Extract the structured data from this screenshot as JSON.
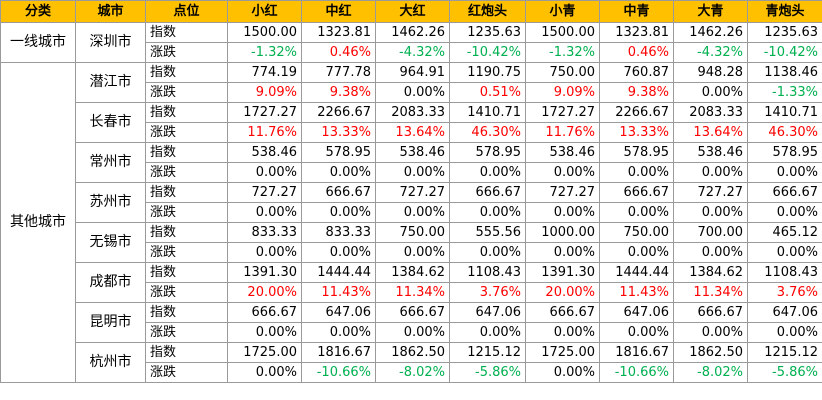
{
  "headers": [
    "分类",
    "城市",
    "点位",
    "小红",
    "中红",
    "大红",
    "红炮头",
    "小青",
    "中青",
    "大青",
    "青炮头"
  ],
  "groups": [
    {
      "category": "一线城市",
      "cities": [
        {
          "name": "深圳市",
          "index_label": "指数",
          "change_label": "涨跌",
          "index": [
            "1500.00",
            "1323.81",
            "1462.26",
            "1235.63",
            "1500.00",
            "1323.81",
            "1462.26",
            "1235.63"
          ],
          "change": [
            "-1.32%",
            "0.46%",
            "-4.32%",
            "-10.42%",
            "-1.32%",
            "0.46%",
            "-4.32%",
            "-10.42%"
          ]
        }
      ]
    },
    {
      "category": "其他城市",
      "cities": [
        {
          "name": "潜江市",
          "index_label": "指数",
          "change_label": "涨跌",
          "index": [
            "774.19",
            "777.78",
            "964.91",
            "1190.75",
            "750.00",
            "760.87",
            "948.28",
            "1138.46"
          ],
          "change": [
            "9.09%",
            "9.38%",
            "0.00%",
            "0.51%",
            "9.09%",
            "9.38%",
            "0.00%",
            "-1.33%"
          ]
        },
        {
          "name": "长春市",
          "index_label": "指数",
          "change_label": "涨跌",
          "index": [
            "1727.27",
            "2266.67",
            "2083.33",
            "1410.71",
            "1727.27",
            "2266.67",
            "2083.33",
            "1410.71"
          ],
          "change": [
            "11.76%",
            "13.33%",
            "13.64%",
            "46.30%",
            "11.76%",
            "13.33%",
            "13.64%",
            "46.30%"
          ]
        },
        {
          "name": "常州市",
          "index_label": "指数",
          "change_label": "涨跌",
          "index": [
            "538.46",
            "578.95",
            "538.46",
            "578.95",
            "538.46",
            "578.95",
            "538.46",
            "578.95"
          ],
          "change": [
            "0.00%",
            "0.00%",
            "0.00%",
            "0.00%",
            "0.00%",
            "0.00%",
            "0.00%",
            "0.00%"
          ]
        },
        {
          "name": "苏州市",
          "index_label": "指数",
          "change_label": "涨跌",
          "index": [
            "727.27",
            "666.67",
            "727.27",
            "666.67",
            "727.27",
            "666.67",
            "727.27",
            "666.67"
          ],
          "change": [
            "0.00%",
            "0.00%",
            "0.00%",
            "0.00%",
            "0.00%",
            "0.00%",
            "0.00%",
            "0.00%"
          ]
        },
        {
          "name": "无锡市",
          "index_label": "指数",
          "change_label": "涨跌",
          "index": [
            "833.33",
            "833.33",
            "750.00",
            "555.56",
            "1000.00",
            "750.00",
            "700.00",
            "465.12"
          ],
          "change": [
            "0.00%",
            "0.00%",
            "0.00%",
            "0.00%",
            "0.00%",
            "0.00%",
            "0.00%",
            "0.00%"
          ]
        },
        {
          "name": "成都市",
          "index_label": "指数",
          "change_label": "涨跌",
          "index": [
            "1391.30",
            "1444.44",
            "1384.62",
            "1108.43",
            "1391.30",
            "1444.44",
            "1384.62",
            "1108.43"
          ],
          "change": [
            "20.00%",
            "11.43%",
            "11.34%",
            "3.76%",
            "20.00%",
            "11.43%",
            "11.34%",
            "3.76%"
          ]
        },
        {
          "name": "昆明市",
          "index_label": "指数",
          "change_label": "涨跌",
          "index": [
            "666.67",
            "647.06",
            "666.67",
            "647.06",
            "666.67",
            "647.06",
            "666.67",
            "647.06"
          ],
          "change": [
            "0.00%",
            "0.00%",
            "0.00%",
            "0.00%",
            "0.00%",
            "0.00%",
            "0.00%",
            "0.00%"
          ]
        },
        {
          "name": "杭州市",
          "index_label": "指数",
          "change_label": "涨跌",
          "index": [
            "1725.00",
            "1816.67",
            "1862.50",
            "1215.12",
            "1725.00",
            "1816.67",
            "1862.50",
            "1215.12"
          ],
          "change": [
            "0.00%",
            "-10.66%",
            "-8.02%",
            "-5.86%",
            "0.00%",
            "-10.66%",
            "-8.02%",
            "-5.86%"
          ]
        }
      ]
    }
  ],
  "colors": {
    "header_bg": "#ffc000",
    "up": "#ff0000",
    "down": "#00b050",
    "flat": "#000000",
    "border": "#9a9a9a"
  }
}
